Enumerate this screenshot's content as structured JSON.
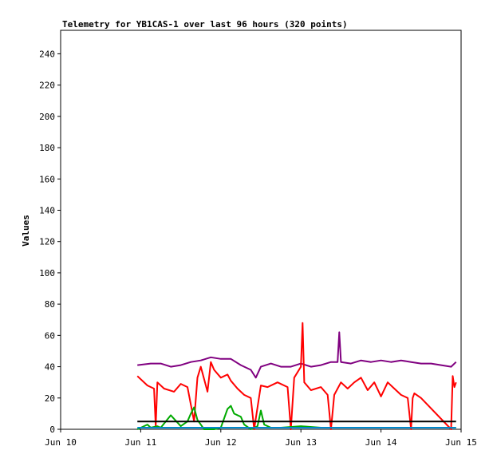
{
  "chart_data": {
    "type": "line",
    "title": "Telemetry for YB1CAS-1 over last 96 hours (320 points)",
    "xlabel": "",
    "ylabel": "Values",
    "x_range": [
      "2023-06-10",
      "2023-06-15"
    ],
    "x_ticks": [
      "Jun 10",
      "Jun 11",
      "Jun 12",
      "Jun 13",
      "Jun 14",
      "Jun 15"
    ],
    "ylim": [
      0,
      255
    ],
    "y_ticks": [
      0,
      20,
      40,
      60,
      80,
      100,
      120,
      140,
      160,
      180,
      200,
      220,
      240
    ],
    "grid": false,
    "legend": "none",
    "series": [
      {
        "color": "#800080",
        "x": [
          "2023-06-10T23:00",
          "2023-06-11T03:00",
          "2023-06-11T06:00",
          "2023-06-11T09:00",
          "2023-06-11T12:00",
          "2023-06-11T15:00",
          "2023-06-11T18:00",
          "2023-06-11T21:00",
          "2023-06-12T00:00",
          "2023-06-12T03:00",
          "2023-06-12T06:00",
          "2023-06-12T09:00",
          "2023-06-12T10:30",
          "2023-06-12T12:00",
          "2023-06-12T15:00",
          "2023-06-12T18:00",
          "2023-06-12T21:00",
          "2023-06-13T00:00",
          "2023-06-13T03:00",
          "2023-06-13T06:00",
          "2023-06-13T09:00",
          "2023-06-13T11:00",
          "2023-06-13T11:30",
          "2023-06-13T12:00",
          "2023-06-13T15:00",
          "2023-06-13T18:00",
          "2023-06-13T21:00",
          "2023-06-14T00:00",
          "2023-06-14T03:00",
          "2023-06-14T06:00",
          "2023-06-14T09:00",
          "2023-06-14T12:00",
          "2023-06-14T15:00",
          "2023-06-14T18:00",
          "2023-06-14T21:00",
          "2023-06-14T22:30"
        ],
        "y": [
          41,
          42,
          42,
          40,
          41,
          43,
          44,
          46,
          45,
          45,
          41,
          38,
          33,
          40,
          42,
          40,
          40,
          42,
          40,
          41,
          43,
          43,
          62,
          43,
          42,
          44,
          43,
          44,
          43,
          44,
          43,
          42,
          42,
          41,
          40,
          43
        ]
      },
      {
        "color": "#ff0000",
        "x": [
          "2023-06-10T23:00",
          "2023-06-11T02:00",
          "2023-06-11T04:00",
          "2023-06-11T04:30",
          "2023-06-11T05:00",
          "2023-06-11T07:00",
          "2023-06-11T10:00",
          "2023-06-11T12:00",
          "2023-06-11T14:00",
          "2023-06-11T16:00",
          "2023-06-11T17:00",
          "2023-06-11T18:00",
          "2023-06-11T20:00",
          "2023-06-11T21:00",
          "2023-06-11T22:00",
          "2023-06-12T00:00",
          "2023-06-12T02:00",
          "2023-06-12T03:00",
          "2023-06-12T05:00",
          "2023-06-12T07:00",
          "2023-06-12T09:00",
          "2023-06-12T10:00",
          "2023-06-12T11:00",
          "2023-06-12T12:00",
          "2023-06-12T14:00",
          "2023-06-12T17:00",
          "2023-06-12T20:00",
          "2023-06-12T21:00",
          "2023-06-12T22:00",
          "2023-06-13T00:00",
          "2023-06-13T00:30",
          "2023-06-13T01:00",
          "2023-06-13T03:00",
          "2023-06-13T06:00",
          "2023-06-13T08:00",
          "2023-06-13T09:00",
          "2023-06-13T10:00",
          "2023-06-13T12:00",
          "2023-06-13T14:00",
          "2023-06-13T16:00",
          "2023-06-13T18:00",
          "2023-06-13T20:00",
          "2023-06-13T22:00",
          "2023-06-14T00:00",
          "2023-06-14T02:00",
          "2023-06-14T04:00",
          "2023-06-14T06:00",
          "2023-06-14T08:00",
          "2023-06-14T09:00",
          "2023-06-14T09:30",
          "2023-06-14T10:00",
          "2023-06-14T12:00",
          "2023-06-14T21:00",
          "2023-06-14T21:30",
          "2023-06-14T22:00",
          "2023-06-14T22:30"
        ],
        "y": [
          34,
          28,
          26,
          2,
          30,
          26,
          24,
          29,
          27,
          5,
          33,
          40,
          24,
          43,
          38,
          33,
          35,
          31,
          26,
          22,
          20,
          0,
          14,
          28,
          27,
          30,
          27,
          0,
          33,
          40,
          68,
          30,
          25,
          27,
          22,
          0,
          22,
          30,
          26,
          30,
          33,
          25,
          30,
          21,
          30,
          26,
          22,
          20,
          0,
          20,
          23,
          20,
          0,
          34,
          27,
          30
        ]
      },
      {
        "color": "#00aa00",
        "x": [
          "2023-06-10T23:00",
          "2023-06-11T02:00",
          "2023-06-11T03:00",
          "2023-06-11T05:00",
          "2023-06-11T06:00",
          "2023-06-11T09:00",
          "2023-06-11T12:00",
          "2023-06-11T14:00",
          "2023-06-11T15:00",
          "2023-06-11T16:00",
          "2023-06-11T17:00",
          "2023-06-11T19:00",
          "2023-06-11T22:00",
          "2023-06-12T00:00",
          "2023-06-12T02:00",
          "2023-06-12T03:00",
          "2023-06-12T04:00",
          "2023-06-12T06:00",
          "2023-06-12T07:00",
          "2023-06-12T09:00",
          "2023-06-12T11:00",
          "2023-06-12T12:00",
          "2023-06-12T13:00",
          "2023-06-12T15:00",
          "2023-06-12T18:00",
          "2023-06-13T00:00",
          "2023-06-13T06:00",
          "2023-06-13T12:00",
          "2023-06-13T18:00",
          "2023-06-14T00:00",
          "2023-06-14T06:00",
          "2023-06-14T12:00",
          "2023-06-14T18:00",
          "2023-06-14T22:30"
        ],
        "y": [
          0,
          3,
          1,
          2,
          1,
          9,
          2,
          5,
          10,
          14,
          6,
          0,
          0,
          1,
          13,
          15,
          10,
          8,
          3,
          0,
          2,
          12,
          3,
          1,
          1,
          2,
          1,
          1,
          1,
          1,
          1,
          1,
          1,
          1
        ]
      },
      {
        "color": "#000000",
        "x": [
          "2023-06-10T23:00",
          "2023-06-14T22:30"
        ],
        "y": [
          5,
          5
        ]
      },
      {
        "color": "#0088cc",
        "x": [
          "2023-06-10T23:00",
          "2023-06-14T22:30"
        ],
        "y": [
          1,
          1
        ]
      }
    ]
  }
}
